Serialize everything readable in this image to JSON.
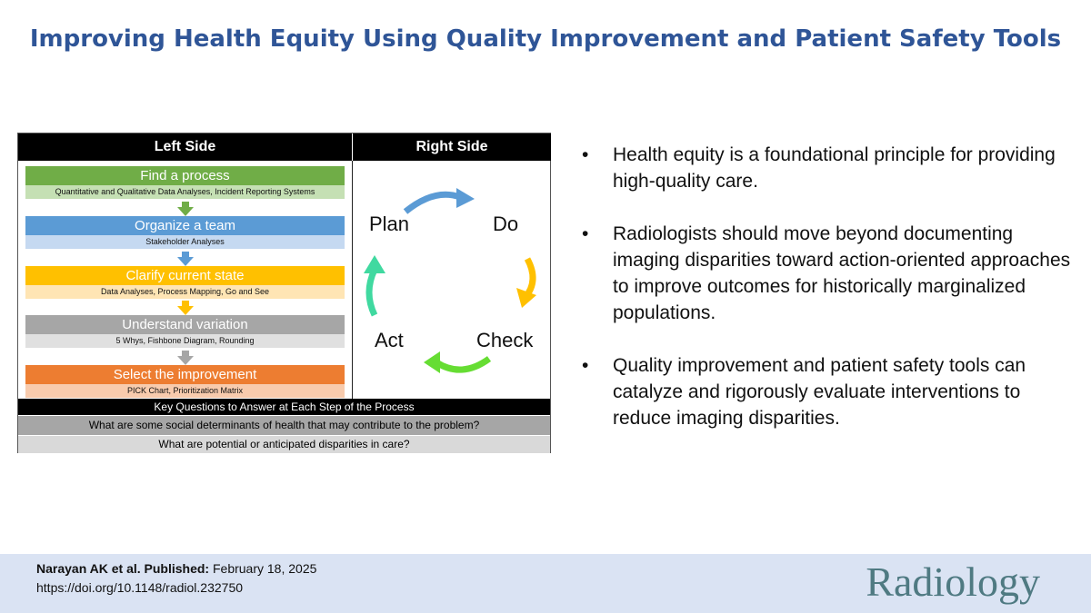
{
  "title": "Improving Health Equity Using Quality Improvement and Patient Safety Tools",
  "diagram": {
    "left_header": "Left Side",
    "right_header": "Right Side",
    "steps": [
      {
        "label": "Find a process",
        "sub": "Quantitative and Qualitative Data Analyses, Incident Reporting Systems",
        "color": "#70ad47",
        "sub_color": "#c5e0b4"
      },
      {
        "label": "Organize a team",
        "sub": "Stakeholder Analyses",
        "color": "#5b9bd5",
        "sub_color": "#c5d9f1"
      },
      {
        "label": "Clarify current state",
        "sub": "Data Analyses, Process Mapping, Go and See",
        "color": "#ffc000",
        "sub_color": "#ffe5b4"
      },
      {
        "label": "Understand variation",
        "sub": "5 Whys, Fishbone Diagram, Rounding",
        "color": "#a6a6a6",
        "sub_color": "#e0e0e0"
      },
      {
        "label": "Select the improvement",
        "sub": "PICK Chart, Prioritization Matrix",
        "color": "#ed7d31",
        "sub_color": "#f8cbad"
      }
    ],
    "cycle": {
      "plan": "Plan",
      "do": "Do",
      "check": "Check",
      "act": "Act",
      "arrow_colors": [
        "#5b9bd5",
        "#ffc000",
        "#66dd33",
        "#40d9a0"
      ]
    },
    "key_questions_header": "Key Questions to Answer at Each Step of the Process",
    "questions": [
      "What are some social determinants of health that may contribute to the problem?",
      "What are potential or anticipated disparities in care?"
    ]
  },
  "bullets": [
    "Health equity is a foundational principle for providing high-quality care.",
    "Radiologists should move beyond documenting imaging disparities toward action-oriented approaches to improve outcomes for historically marginalized populations.",
    "Quality improvement and patient safety tools can catalyze and rigorously evaluate interventions to reduce imaging disparities."
  ],
  "bullet_symbol": "•",
  "footer": {
    "authors": "Narayan AK et al. Published:",
    "date": "February 18, 2025",
    "doi": "https://doi.org/10.1148/radiol.232750",
    "journal": "Radiology"
  }
}
